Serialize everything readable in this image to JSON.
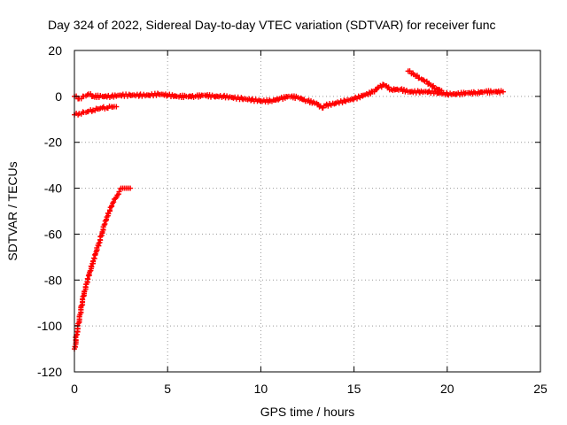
{
  "chart_data": {
    "type": "scatter",
    "title": "Day 324 of 2022, Sidereal Day-to-day VTEC variation (SDTVAR) for receiver func",
    "xlabel": "GPS time / hours",
    "ylabel": "SDTVAR / TECUs",
    "xlim": [
      0,
      25
    ],
    "ylim": [
      -120,
      20
    ],
    "xticks": [
      0,
      5,
      10,
      15,
      20,
      25
    ],
    "yticks": [
      -120,
      -100,
      -80,
      -60,
      -40,
      -20,
      0,
      20
    ],
    "grid": true,
    "legend": "none",
    "series": [
      {
        "marker": "plus",
        "color": "#ff0000",
        "x": [
          0.0,
          0.1,
          0.2,
          0.3,
          0.4,
          0.5,
          0.6,
          0.7,
          0.8,
          0.9,
          1.0,
          1.1,
          1.2,
          1.3,
          1.4,
          1.5,
          1.6,
          1.7,
          1.8,
          1.9,
          2.0,
          2.1,
          2.2,
          2.3,
          2.4,
          2.5,
          2.6,
          2.7,
          2.8,
          2.9,
          3.0
        ],
        "y": [
          -110,
          -104,
          -99,
          -95,
          -91,
          -87,
          -84,
          -81,
          -78,
          -75,
          -72,
          -69,
          -66,
          -64,
          -61,
          -59,
          -56,
          -54,
          -52,
          -50,
          -48,
          -46,
          -44.5,
          -43,
          -41.5,
          -40,
          -40,
          -40,
          -40,
          -40,
          -40
        ]
      },
      {
        "marker": "plus",
        "color": "#ff0000",
        "x": [
          0.0,
          0.25,
          0.5,
          0.75,
          1.0,
          1.25,
          1.5,
          1.75,
          2.0,
          2.25
        ],
        "y": [
          -8,
          -7.5,
          -7,
          -6.5,
          -6,
          -5.5,
          -5,
          -5,
          -4.5,
          -4.5
        ]
      },
      {
        "marker": "plus",
        "color": "#ff0000",
        "x": [
          0.0,
          0.25,
          0.5,
          0.75,
          1.0,
          1.5,
          2.0,
          2.5,
          3.0,
          3.5,
          4.0,
          4.5,
          5.0,
          5.5,
          6.0,
          6.5,
          7.0,
          7.5,
          8.0,
          8.5,
          9.0,
          9.5,
          10.0,
          10.5,
          11.0,
          11.5,
          12.0,
          12.5,
          13.0,
          13.3,
          13.5,
          14.0,
          14.5,
          15.0,
          15.5,
          16.0,
          16.3,
          16.6,
          17.0,
          17.5,
          18.0,
          18.5,
          19.0,
          19.5,
          20.0,
          20.5,
          21.0,
          21.5,
          22.0,
          22.5,
          23.0
        ],
        "y": [
          0,
          -1,
          0,
          1,
          0,
          0,
          0,
          0.5,
          0.5,
          0.5,
          0.5,
          1,
          0.5,
          0,
          0,
          0,
          0.5,
          0,
          0,
          -0.5,
          -1,
          -1.5,
          -2,
          -2,
          -1,
          0,
          -0.5,
          -2,
          -3,
          -5,
          -4,
          -3,
          -2,
          -1,
          0.5,
          2,
          4,
          5,
          3,
          3,
          2,
          2,
          2,
          1.5,
          1,
          1,
          1.5,
          1.5,
          2,
          2,
          2
        ]
      },
      {
        "marker": "plus",
        "color": "#ff0000",
        "x": [
          17.9,
          18.2,
          18.5,
          18.8,
          19.1,
          19.4,
          19.7
        ],
        "y": [
          11,
          9.5,
          8,
          6.5,
          5,
          3.5,
          2.5
        ]
      }
    ]
  }
}
